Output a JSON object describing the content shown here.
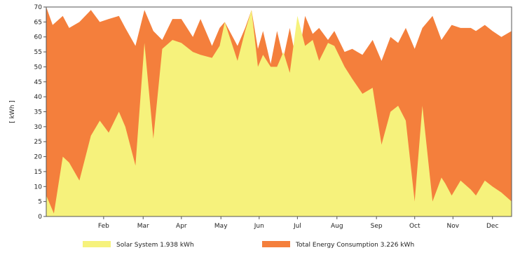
{
  "chart_data": {
    "type": "area",
    "ylabel": "[ kWh ]",
    "ylim": [
      0,
      70
    ],
    "yticks": [
      0,
      5,
      10,
      15,
      20,
      25,
      30,
      35,
      40,
      45,
      50,
      55,
      60,
      65,
      70
    ],
    "xlim": [
      0,
      365
    ],
    "grid": false,
    "legend_position": "bottom",
    "months": [
      {
        "label": "Feb",
        "day": 45
      },
      {
        "label": "Mar",
        "day": 76
      },
      {
        "label": "Apr",
        "day": 106
      },
      {
        "label": "May",
        "day": 137
      },
      {
        "label": "Jun",
        "day": 167
      },
      {
        "label": "Jul",
        "day": 197
      },
      {
        "label": "Aug",
        "day": 228
      },
      {
        "label": "Sep",
        "day": 259
      },
      {
        "label": "Oct",
        "day": 289
      },
      {
        "label": "Nov",
        "day": 319
      },
      {
        "label": "Dec",
        "day": 350
      }
    ],
    "series": [
      {
        "name": "Total Energy Consumption 3.226 kWh",
        "color": "#f47f3c",
        "x": [
          0,
          5,
          13,
          18,
          26,
          35,
          42,
          49,
          57,
          62,
          70,
          77,
          84,
          91,
          99,
          106,
          115,
          121,
          130,
          136,
          140,
          150,
          156,
          161,
          166,
          170,
          176,
          181,
          186,
          191,
          197,
          203,
          209,
          214,
          221,
          226,
          234,
          240,
          248,
          256,
          263,
          270,
          276,
          282,
          289,
          295,
          303,
          310,
          318,
          325,
          333,
          337,
          344,
          350,
          357,
          365
        ],
        "values": [
          70,
          64,
          67,
          63,
          65,
          69,
          65,
          66,
          67,
          63,
          57,
          69,
          62,
          59,
          66,
          66,
          60,
          66,
          57,
          63,
          65,
          57,
          63,
          69,
          56,
          62,
          51,
          62,
          53,
          63,
          50,
          67,
          61,
          63,
          59,
          62,
          55,
          56,
          54,
          59,
          52,
          60,
          58,
          63,
          56,
          63,
          67,
          59,
          64,
          63,
          63,
          62,
          64,
          62,
          60,
          62
        ]
      },
      {
        "name": "Solar System 1.938 kWh",
        "color": "#f6f27c",
        "x": [
          0,
          6,
          13,
          18,
          26,
          35,
          42,
          49,
          57,
          62,
          70,
          77,
          84,
          91,
          99,
          106,
          115,
          121,
          130,
          136,
          140,
          150,
          156,
          161,
          166,
          170,
          176,
          181,
          186,
          191,
          197,
          203,
          209,
          214,
          221,
          226,
          234,
          240,
          248,
          256,
          263,
          270,
          276,
          282,
          289,
          295,
          303,
          310,
          313,
          318,
          325,
          333,
          337,
          344,
          350,
          357,
          365
        ],
        "values": [
          7,
          1,
          20,
          18,
          12,
          27,
          32,
          28,
          35,
          30,
          17,
          58,
          26,
          56,
          59,
          58,
          55,
          54,
          53,
          57,
          65,
          52,
          62,
          69,
          50,
          54,
          50,
          50,
          55,
          48,
          67,
          57,
          59,
          52,
          58,
          57,
          50,
          46,
          41,
          43,
          24,
          35,
          37,
          32,
          5,
          37,
          5,
          13,
          11,
          7,
          12,
          9,
          7,
          12,
          10,
          8,
          5
        ]
      }
    ]
  }
}
